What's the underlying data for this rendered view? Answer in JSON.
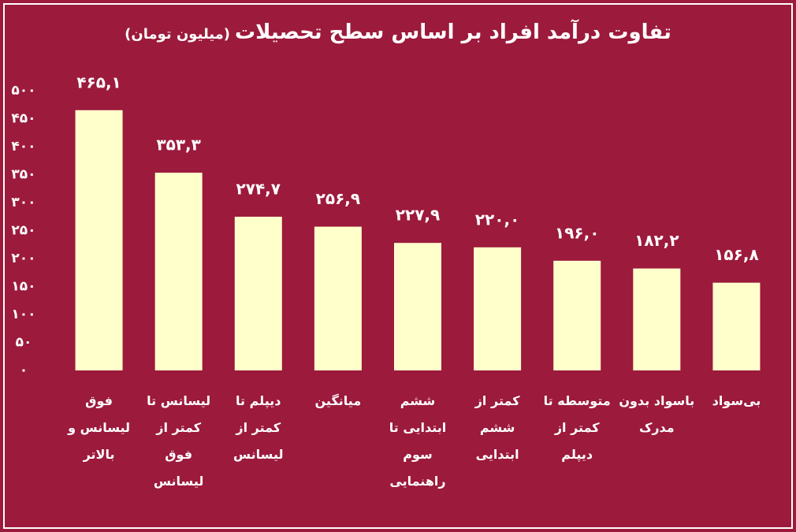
{
  "chart_data": {
    "type": "bar",
    "title": "تفاوت درآمد افراد بر اساس سطح تحصیلات",
    "subtitle": "(میلیون تومان)",
    "categories": [
      "فوق لیسانس و بالاتر",
      "لیسانس تا کمتر از فوق لیسانس",
      "دیپلم تا کمتر از لیسانس",
      "میانگین",
      "ششم ابتدایی تا سوم راهنمایی",
      "کمتر از ششم ابتدایی",
      "متوسطه تا کمتر از دیپلم",
      "باسواد بدون مدرک",
      "بی‌سواد"
    ],
    "values": [
      465.1,
      353.3,
      274.7,
      256.9,
      227.9,
      220.0,
      196.0,
      182.2,
      156.8
    ],
    "value_labels": [
      "۴۶۵,۱",
      "۳۵۳,۳",
      "۲۷۴,۷",
      "۲۵۶,۹",
      "۲۲۷,۹",
      "۲۲۰,۰",
      "۱۹۶,۰",
      "۱۸۲,۲",
      "۱۵۶,۸"
    ],
    "color": "#ffffcc",
    "ylim": [
      0,
      500
    ],
    "yticks": [
      {
        "value": 0,
        "label": "۰"
      },
      {
        "value": 50,
        "label": "۵۰"
      },
      {
        "value": 100,
        "label": "۱۰۰"
      },
      {
        "value": 150,
        "label": "۱۵۰"
      },
      {
        "value": 200,
        "label": "۲۰۰"
      },
      {
        "value": 250,
        "label": "۲۵۰"
      },
      {
        "value": 300,
        "label": "۳۰۰"
      },
      {
        "value": 350,
        "label": "۳۵۰"
      },
      {
        "value": 400,
        "label": "۴۰۰"
      },
      {
        "value": 450,
        "label": "۴۵۰"
      },
      {
        "value": 500,
        "label": "۵۰۰"
      }
    ],
    "grid": false
  }
}
